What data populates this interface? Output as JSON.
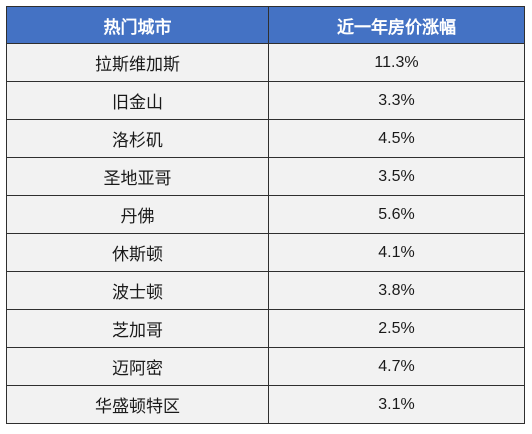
{
  "table": {
    "header_color": "#4472c4",
    "row_color": "#f2f2f2",
    "columns": [
      "热门城市",
      "近一年房价涨幅"
    ],
    "rows": [
      {
        "city": "拉斯维加斯",
        "change": "11.3%"
      },
      {
        "city": "旧金山",
        "change": "3.3%"
      },
      {
        "city": "洛杉矶",
        "change": "4.5%"
      },
      {
        "city": "圣地亚哥",
        "change": "3.5%"
      },
      {
        "city": "丹佛",
        "change": "5.6%"
      },
      {
        "city": "休斯顿",
        "change": "4.1%"
      },
      {
        "city": "波士顿",
        "change": "3.8%"
      },
      {
        "city": "芝加哥",
        "change": "2.5%"
      },
      {
        "city": "迈阿密",
        "change": "4.7%"
      },
      {
        "city": "华盛顿特区",
        "change": "3.1%"
      }
    ]
  }
}
